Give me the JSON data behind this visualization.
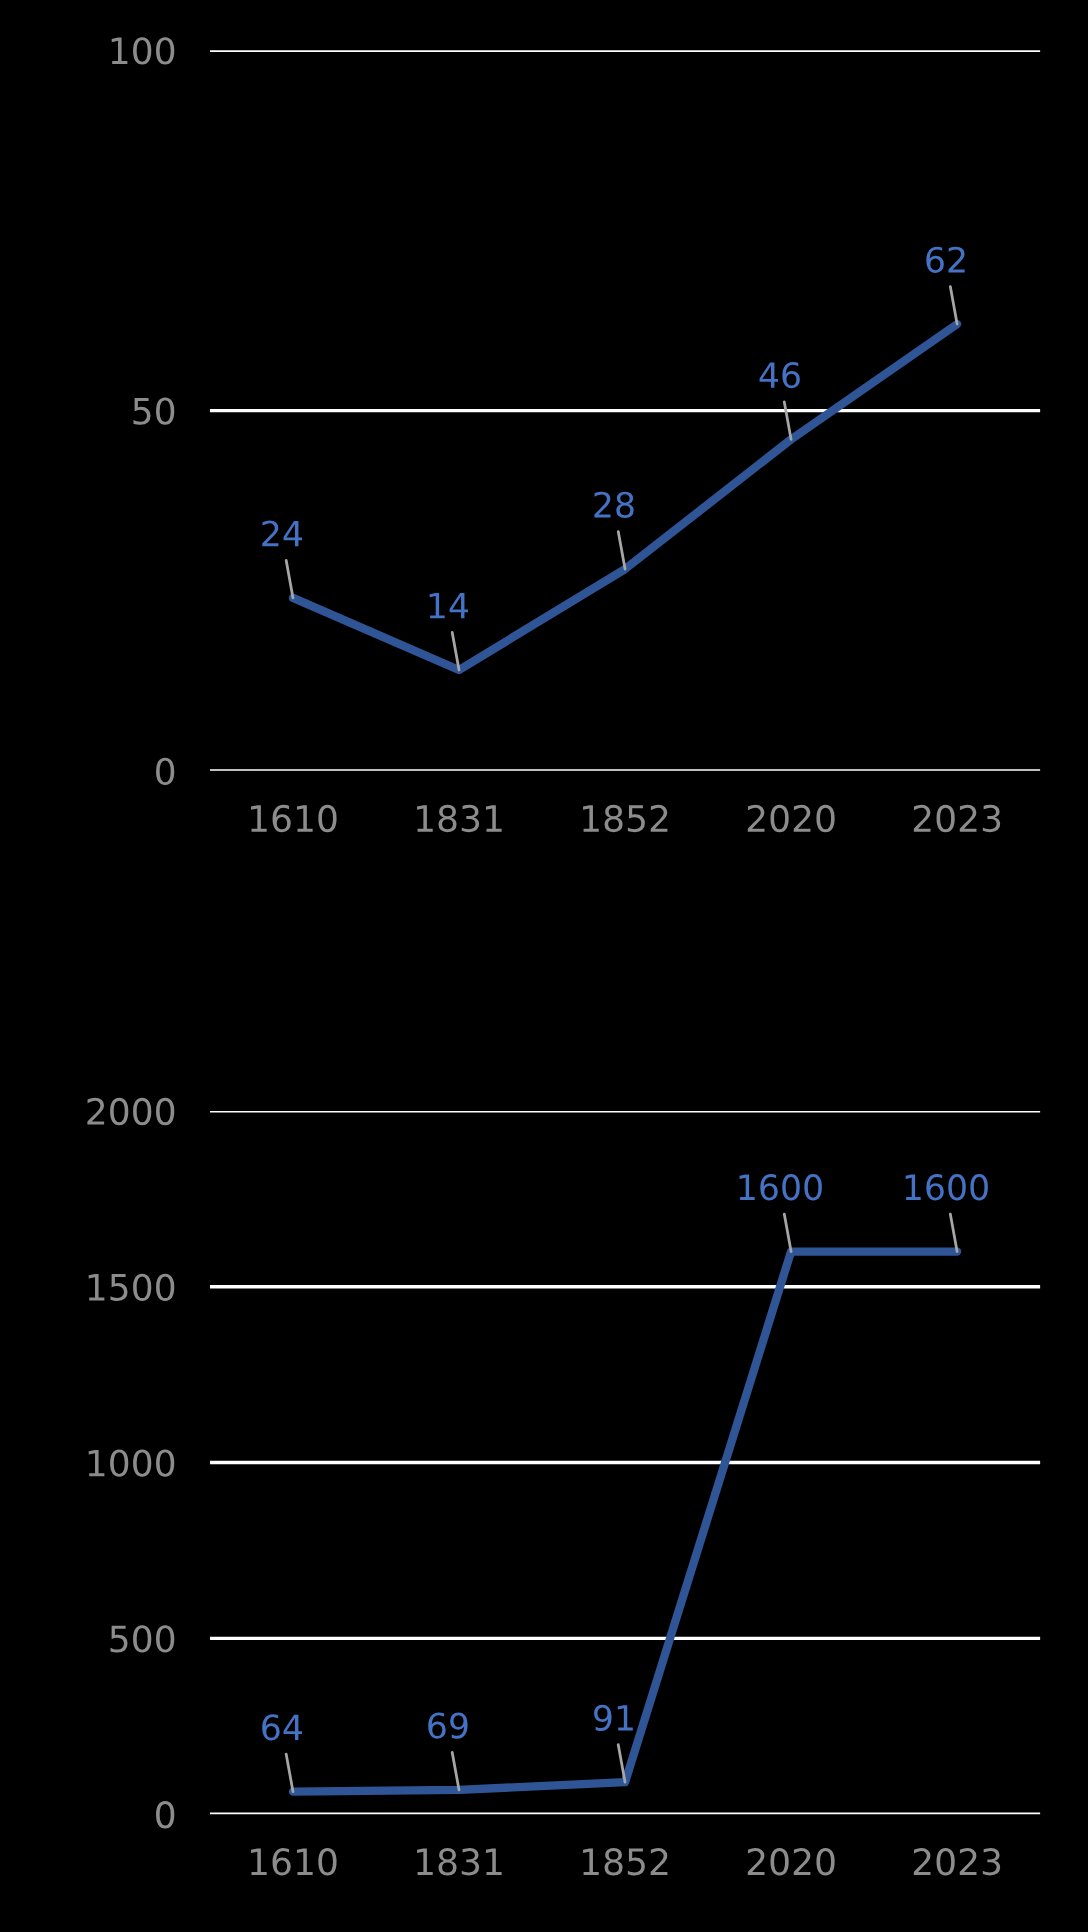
{
  "chart_data": [
    {
      "type": "line",
      "categories": [
        "1610",
        "1831",
        "1852",
        "2020",
        "2023"
      ],
      "series": [
        {
          "color": "#2f5597",
          "values": [
            24,
            14,
            28,
            46,
            62
          ]
        }
      ],
      "ylim": [
        0,
        100
      ],
      "yticks": [
        0,
        50,
        100
      ],
      "grid": "y",
      "data_labels": true,
      "legend": false
    },
    {
      "type": "line",
      "categories": [
        "1610",
        "1831",
        "1852",
        "2020",
        "2023"
      ],
      "series": [
        {
          "color": "#2f5597",
          "values": [
            64,
            69,
            91,
            1600,
            1600
          ]
        }
      ],
      "ylim": [
        0,
        2000
      ],
      "yticks": [
        0,
        500,
        1000,
        1500,
        2000
      ],
      "grid": "y",
      "data_labels": true,
      "legend": false
    }
  ]
}
